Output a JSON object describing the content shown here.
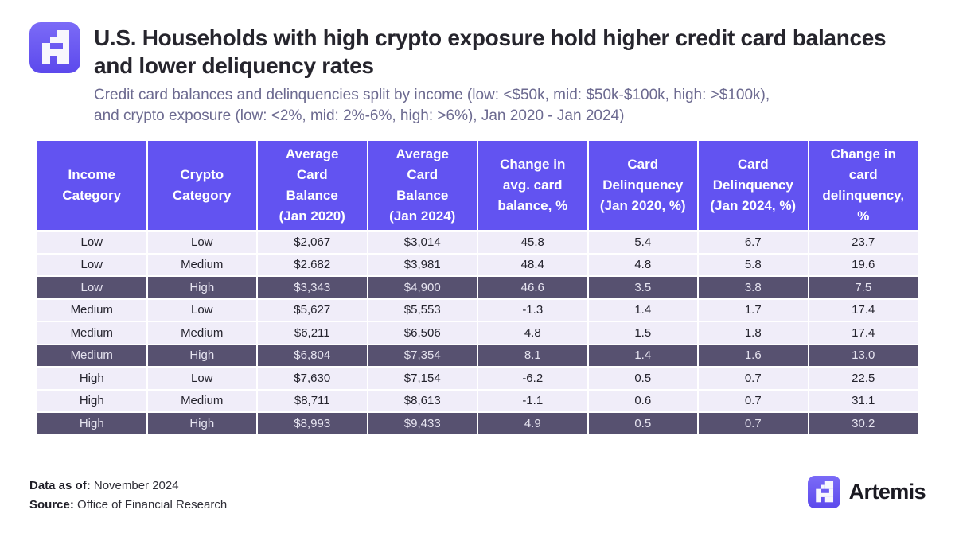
{
  "header": {
    "title_line1": "U.S. Households with high crypto exposure hold higher credit card balances",
    "title_line2": "and lower deliquency rates",
    "subtitle_line1": "Credit card balances and delinquencies split by income (low: <$50k, mid: $50k-$100k, high: >$100k),",
    "subtitle_line2": "and crypto exposure (low: <2%, mid: 2%-6%, high: >6%), Jan 2020 - Jan 2024)"
  },
  "chart_data": {
    "type": "table",
    "title": "U.S. Households with high crypto exposure hold higher credit card balances and lower deliquency rates",
    "columns": [
      "Income\nCategory",
      "Crypto\nCategory",
      "Average\nCard\nBalance\n(Jan 2020)",
      "Average\nCard\nBalance\n(Jan 2024)",
      "Change in\navg. card\nbalance, %",
      "Card\nDelinquency\n(Jan 2020, %)",
      "Card\nDelinquency\n(Jan 2024, %)",
      "Change in\ncard\ndelinquency,\n%"
    ],
    "rows": [
      [
        "Low",
        "Low",
        "$2,067",
        "$3,014",
        "45.8",
        "5.4",
        "6.7",
        "23.7"
      ],
      [
        "Low",
        "Medium",
        "$2.682",
        "$3,981",
        "48.4",
        "4.8",
        "5.8",
        "19.6"
      ],
      [
        "Low",
        "High",
        "$3,343",
        "$4,900",
        "46.6",
        "3.5",
        "3.8",
        "7.5"
      ],
      [
        "Medium",
        "Low",
        "$5,627",
        "$5,553",
        "-1.3",
        "1.4",
        "1.7",
        "17.4"
      ],
      [
        "Medium",
        "Medium",
        "$6,211",
        "$6,506",
        "4.8",
        "1.5",
        "1.8",
        "17.4"
      ],
      [
        "Medium",
        "High",
        "$6,804",
        "$7,354",
        "8.1",
        "1.4",
        "1.6",
        "13.0"
      ],
      [
        "High",
        "Low",
        "$7,630",
        "$7,154",
        "-6.2",
        "0.5",
        "0.7",
        "22.5"
      ],
      [
        "High",
        "Medium",
        "$8,711",
        "$8,613",
        "-1.1",
        "0.6",
        "0.7",
        "31.1"
      ],
      [
        "High",
        "High",
        "$8,993",
        "$9,433",
        "4.9",
        "0.5",
        "0.7",
        "30.2"
      ]
    ],
    "highlighted_rows": [
      2,
      5,
      8
    ],
    "highlight_meaning": "High crypto exposure rows shown with dark background"
  },
  "footer": {
    "data_as_of_label": "Data as of:",
    "data_as_of_value": "November 2024",
    "source_label": "Source:",
    "source_value": "Office of Financial Research",
    "brand_name": "Artemis"
  },
  "colors": {
    "header_bg": "#6253F1",
    "row_light_bg": "#F0EDF9",
    "row_dark_bg": "#575170",
    "brand_purple_top": "#7B6BF7",
    "brand_purple_bottom": "#5C49EC",
    "subtitle_color": "#6C6A90",
    "title_color": "#26252D"
  }
}
